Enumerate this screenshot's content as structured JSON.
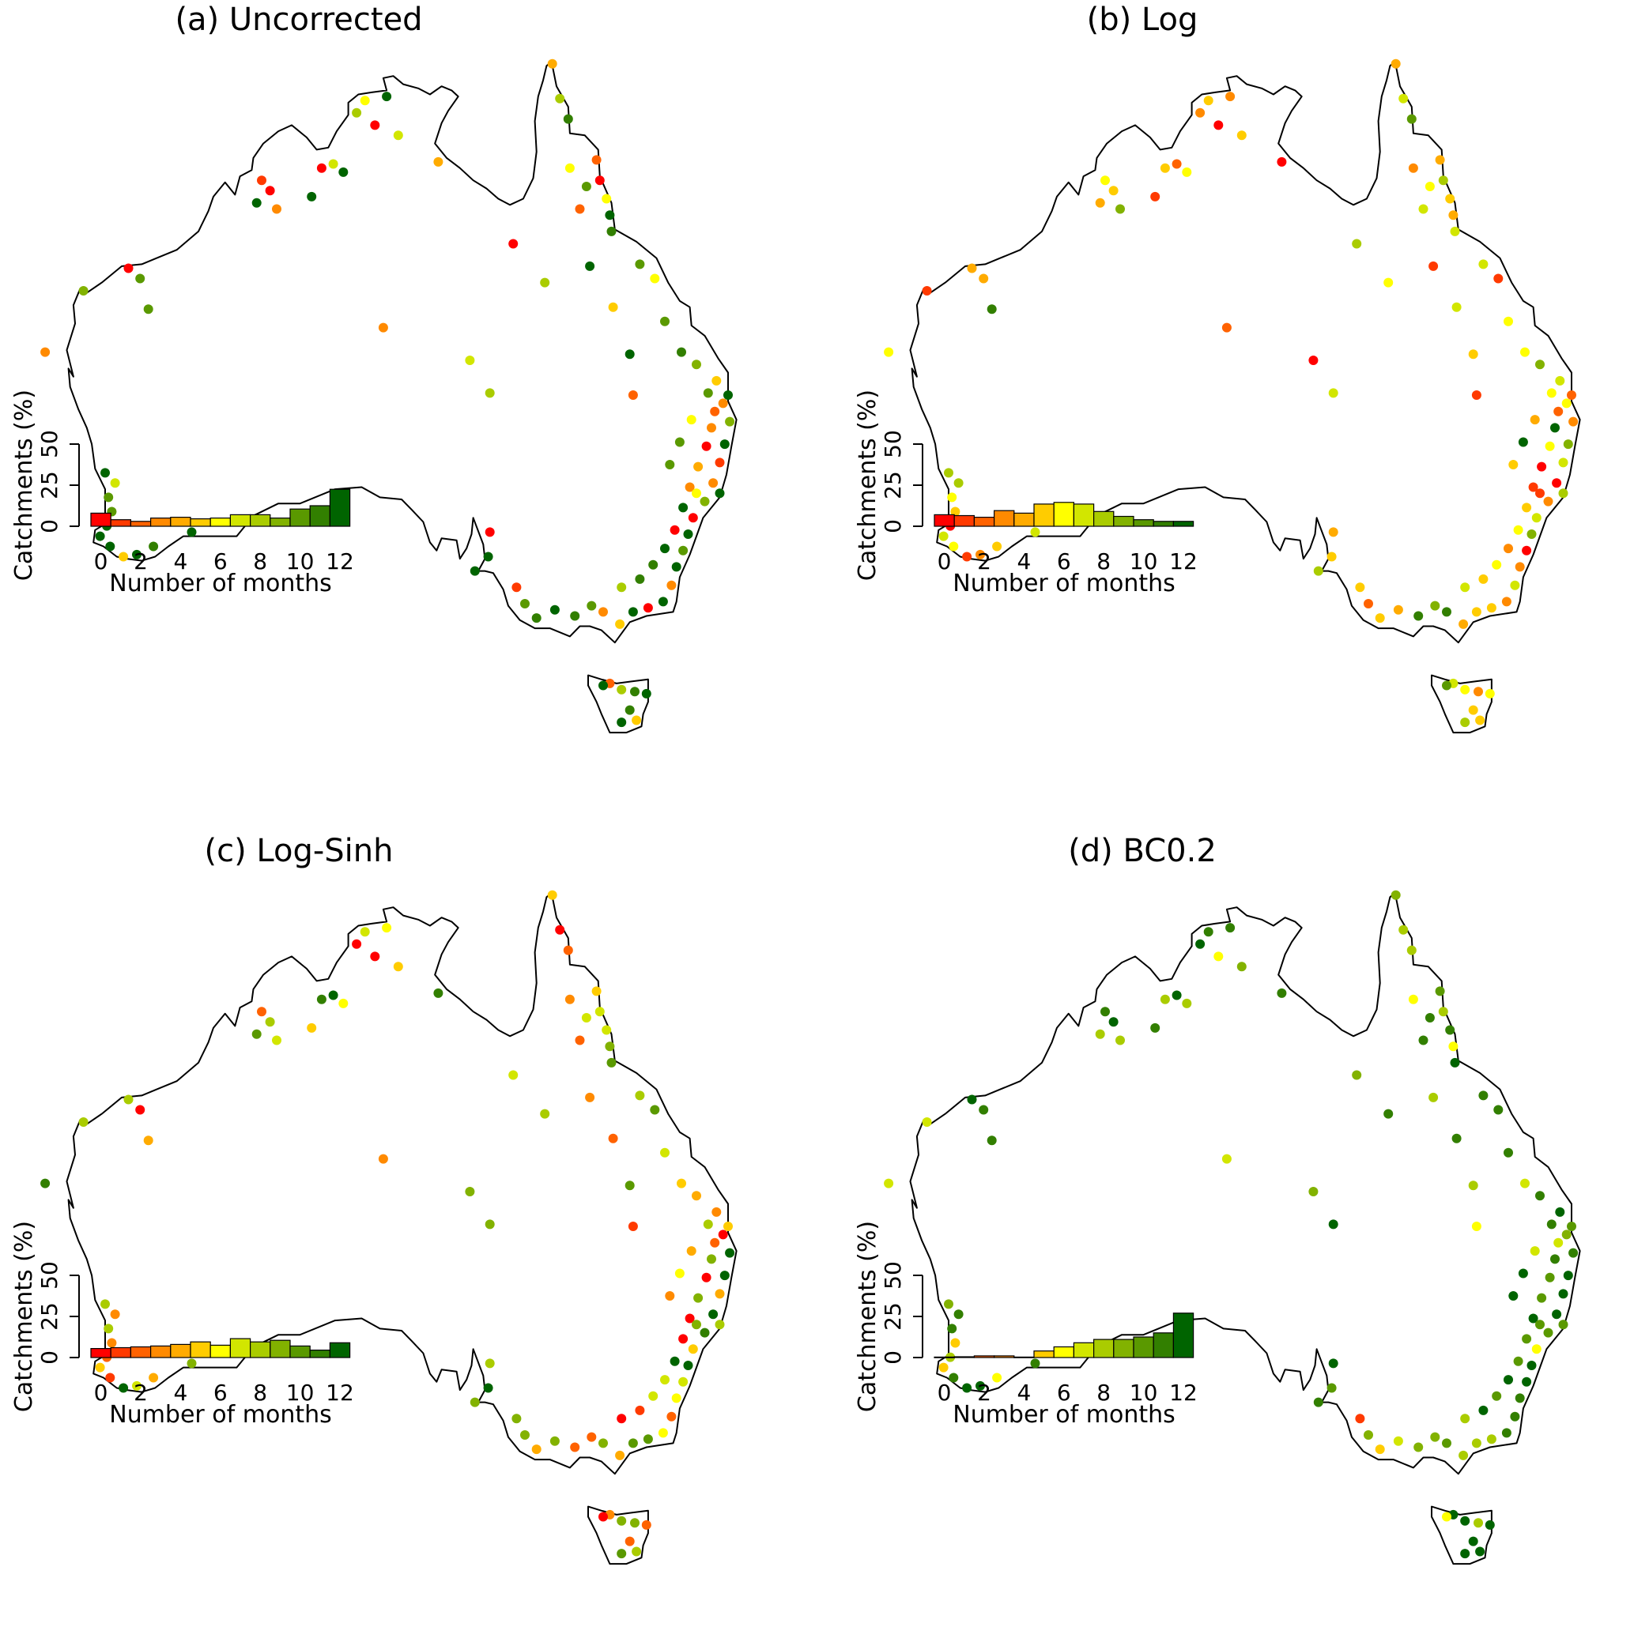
{
  "figure": {
    "y_axis_label": "Catchments (%)",
    "x_axis_label": "Number of months",
    "y_ticks": [
      0,
      25,
      50
    ],
    "x_tick_labels": [
      "0",
      "2",
      "4",
      "6",
      "8",
      "10",
      "12"
    ],
    "ylim": [
      0,
      50
    ],
    "color_scale": [
      "#ff0000",
      "#ff3a00",
      "#ff6200",
      "#ff8a00",
      "#ffab00",
      "#ffcc00",
      "#ffff00",
      "#d2e600",
      "#aacc00",
      "#82b200",
      "#5a9900",
      "#327f00",
      "#006400"
    ]
  },
  "chart_data": [
    {
      "type": "bar",
      "title": "(a) Uncorrected",
      "categories": [
        "0",
        "1",
        "2",
        "3",
        "4",
        "5",
        "6",
        "7",
        "8",
        "9",
        "10",
        "11",
        "12"
      ],
      "values": [
        8,
        4,
        3,
        5,
        5.5,
        4.5,
        5,
        7,
        7,
        5,
        10.5,
        12.5,
        22.5
      ],
      "xlabel": "Number of months",
      "ylabel": "Catchments (%)",
      "ylim": [
        0,
        50
      ]
    },
    {
      "type": "bar",
      "title": "(b) Log",
      "categories": [
        "0",
        "1",
        "2",
        "3",
        "4",
        "5",
        "6",
        "7",
        "8",
        "9",
        "10",
        "11",
        "12"
      ],
      "values": [
        7,
        6.5,
        5.5,
        9.5,
        8,
        13.5,
        14.5,
        13.5,
        9,
        6,
        4,
        3,
        3
      ],
      "xlabel": "Number of months",
      "ylabel": "Catchments (%)",
      "ylim": [
        0,
        50
      ]
    },
    {
      "type": "bar",
      "title": "(c) Log-Sinh",
      "categories": [
        "0",
        "1",
        "2",
        "3",
        "4",
        "5",
        "6",
        "7",
        "8",
        "9",
        "10",
        "11",
        "12"
      ],
      "values": [
        5.5,
        6,
        6.5,
        7,
        8,
        9.5,
        7.5,
        11.5,
        9.5,
        10.5,
        7,
        4.5,
        9
      ],
      "xlabel": "Number of months",
      "ylabel": "Catchments (%)",
      "ylim": [
        0,
        50
      ]
    },
    {
      "type": "bar",
      "title": "(d) BC0.2",
      "categories": [
        "0",
        "1",
        "2",
        "3",
        "4",
        "5",
        "6",
        "7",
        "8",
        "9",
        "10",
        "11",
        "12"
      ],
      "values": [
        0.3,
        0.5,
        1,
        1,
        0.3,
        4,
        6.5,
        9,
        11,
        11,
        12.5,
        15,
        27
      ],
      "xlabel": "Number of months",
      "ylabel": "Catchments (%)",
      "ylim": [
        0,
        50
      ]
    }
  ],
  "catchment_points": [
    {
      "lon": 142.55,
      "lat": -10.8
    },
    {
      "lon": 143.0,
      "lat": -12.5
    },
    {
      "lon": 143.5,
      "lat": -13.5
    },
    {
      "lon": 145.2,
      "lat": -15.5
    },
    {
      "lon": 145.4,
      "lat": -16.5
    },
    {
      "lon": 145.8,
      "lat": -17.4
    },
    {
      "lon": 146.0,
      "lat": -18.2
    },
    {
      "lon": 144.6,
      "lat": -16.8
    },
    {
      "lon": 144.2,
      "lat": -17.9
    },
    {
      "lon": 143.6,
      "lat": -15.9
    },
    {
      "lon": 146.1,
      "lat": -19.0
    },
    {
      "lon": 147.8,
      "lat": -20.6
    },
    {
      "lon": 148.7,
      "lat": -21.3
    },
    {
      "lon": 146.2,
      "lat": -22.7
    },
    {
      "lon": 144.8,
      "lat": -20.7
    },
    {
      "lon": 149.3,
      "lat": -23.4
    },
    {
      "lon": 150.3,
      "lat": -24.9
    },
    {
      "lon": 151.2,
      "lat": -25.5
    },
    {
      "lon": 152.4,
      "lat": -26.3
    },
    {
      "lon": 152.8,
      "lat": -27.4
    },
    {
      "lon": 153.2,
      "lat": -28.3
    },
    {
      "lon": 152.9,
      "lat": -29.4
    },
    {
      "lon": 152.6,
      "lat": -30.3
    },
    {
      "lon": 152.2,
      "lat": -31.3
    },
    {
      "lon": 151.7,
      "lat": -32.2
    },
    {
      "lon": 151.0,
      "lat": -33.0
    },
    {
      "lon": 150.7,
      "lat": -33.8
    },
    {
      "lon": 150.4,
      "lat": -34.6
    },
    {
      "lon": 150.0,
      "lat": -35.4
    },
    {
      "lon": 149.7,
      "lat": -36.3
    },
    {
      "lon": 149.2,
      "lat": -37.1
    },
    {
      "lon": 148.3,
      "lat": -37.4
    },
    {
      "lon": 147.4,
      "lat": -37.6
    },
    {
      "lon": 146.6,
      "lat": -38.2
    },
    {
      "lon": 145.6,
      "lat": -37.6
    },
    {
      "lon": 144.9,
      "lat": -37.3
    },
    {
      "lon": 143.9,
      "lat": -37.8
    },
    {
      "lon": 142.7,
      "lat": -37.5
    },
    {
      "lon": 141.6,
      "lat": -37.9
    },
    {
      "lon": 146.7,
      "lat": -36.4
    },
    {
      "lon": 147.8,
      "lat": -36.0
    },
    {
      "lon": 148.6,
      "lat": -35.3
    },
    {
      "lon": 149.3,
      "lat": -34.5
    },
    {
      "lon": 149.9,
      "lat": -33.6
    },
    {
      "lon": 150.4,
      "lat": -32.5
    },
    {
      "lon": 150.8,
      "lat": -31.5
    },
    {
      "lon": 151.3,
      "lat": -30.5
    },
    {
      "lon": 151.8,
      "lat": -29.5
    },
    {
      "lon": 152.1,
      "lat": -28.6
    },
    {
      "lon": 152.3,
      "lat": -27.8
    },
    {
      "lon": 151.9,
      "lat": -26.9
    },
    {
      "lon": 150.9,
      "lat": -28.2
    },
    {
      "lon": 150.2,
      "lat": -29.3
    },
    {
      "lon": 149.6,
      "lat": -30.4
    },
    {
      "lon": 151.2,
      "lat": -31.8
    },
    {
      "lon": 152.6,
      "lat": -31.8
    },
    {
      "lon": 153.1,
      "lat": -27.0
    },
    {
      "lon": 138.7,
      "lat": -34.9
    },
    {
      "lon": 138.8,
      "lat": -33.7
    },
    {
      "lon": 137.9,
      "lat": -35.6
    },
    {
      "lon": 140.9,
      "lat": -37.2
    },
    {
      "lon": 140.4,
      "lat": -36.4
    },
    {
      "lon": 146.0,
      "lat": -41.1
    },
    {
      "lon": 146.7,
      "lat": -41.4
    },
    {
      "lon": 147.5,
      "lat": -41.5
    },
    {
      "lon": 148.2,
      "lat": -41.6
    },
    {
      "lon": 147.2,
      "lat": -42.4
    },
    {
      "lon": 146.7,
      "lat": -43.0
    },
    {
      "lon": 147.6,
      "lat": -42.9
    },
    {
      "lon": 145.6,
      "lat": -41.2
    },
    {
      "lon": 115.9,
      "lat": -32.0
    },
    {
      "lon": 116.1,
      "lat": -32.7
    },
    {
      "lon": 115.8,
      "lat": -33.4
    },
    {
      "lon": 115.4,
      "lat": -33.9
    },
    {
      "lon": 116.0,
      "lat": -34.4
    },
    {
      "lon": 116.8,
      "lat": -34.9
    },
    {
      "lon": 117.6,
      "lat": -34.8
    },
    {
      "lon": 116.3,
      "lat": -31.3
    },
    {
      "lon": 115.7,
      "lat": -30.8
    },
    {
      "lon": 118.6,
      "lat": -34.4
    },
    {
      "lon": 120.9,
      "lat": -33.7
    },
    {
      "lon": 114.4,
      "lat": -21.9
    },
    {
      "lon": 117.1,
      "lat": -20.8
    },
    {
      "lon": 117.8,
      "lat": -21.3
    },
    {
      "lon": 125.1,
      "lat": -16.5
    },
    {
      "lon": 124.8,
      "lat": -17.6
    },
    {
      "lon": 125.6,
      "lat": -17.0
    },
    {
      "lon": 126.0,
      "lat": -17.9
    },
    {
      "lon": 128.7,
      "lat": -15.9
    },
    {
      "lon": 129.4,
      "lat": -15.7
    },
    {
      "lon": 130.0,
      "lat": -16.1
    },
    {
      "lon": 130.8,
      "lat": -13.2
    },
    {
      "lon": 131.3,
      "lat": -12.6
    },
    {
      "lon": 132.6,
      "lat": -12.4
    },
    {
      "lon": 131.9,
      "lat": -13.8
    },
    {
      "lon": 133.3,
      "lat": -14.3
    },
    {
      "lon": 135.7,
      "lat": -15.6
    },
    {
      "lon": 128.1,
      "lat": -17.3
    },
    {
      "lon": 118.3,
      "lat": -22.8
    },
    {
      "lon": 132.4,
      "lat": -23.7
    },
    {
      "lon": 137.6,
      "lat": -25.3
    },
    {
      "lon": 138.8,
      "lat": -26.9
    },
    {
      "lon": 147.2,
      "lat": -25.0
    },
    {
      "lon": 147.4,
      "lat": -27.0
    },
    {
      "lon": 140.2,
      "lat": -19.6
    },
    {
      "lon": 142.1,
      "lat": -21.5
    },
    {
      "lon": 112.1,
      "lat": -24.9
    }
  ]
}
